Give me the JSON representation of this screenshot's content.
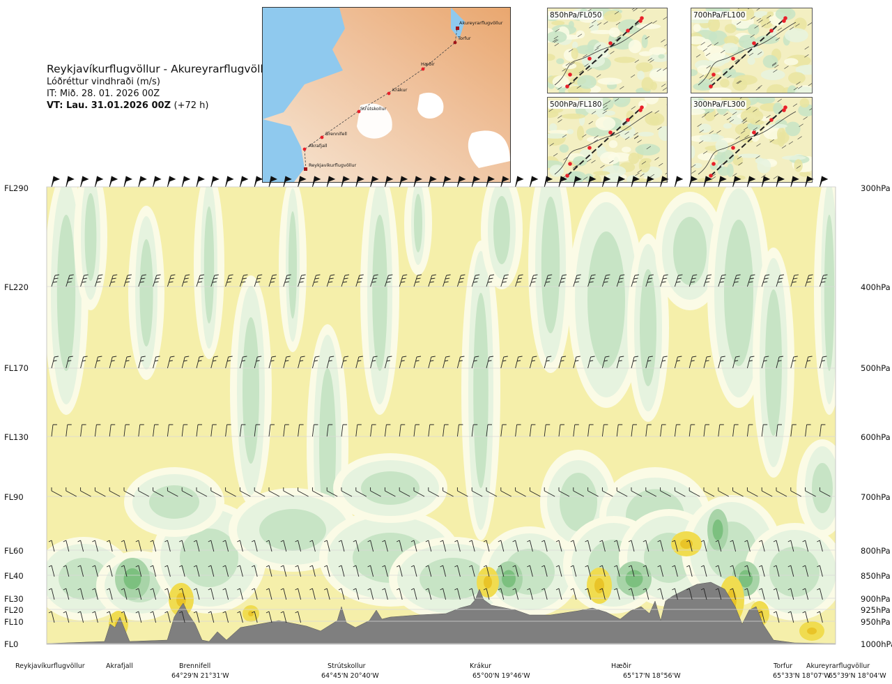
{
  "title": {
    "route": "Reykjavíkurflugvöllur - Akureyrarflugvöllur",
    "variable": "Lóðréttur vindhraði (m/s)",
    "issued": "IT: Mið. 28. 01. 2026 00Z",
    "valid_bold": "VT: Lau. 31.01.2026 00Z",
    "valid_lead": "(+72 h)"
  },
  "map": {
    "points": [
      "Akureyrarflugvöllur",
      "Torfur",
      "Hæðir",
      "Krákur",
      "Strútskollur",
      "Brennifell",
      "Akrafjall",
      "Reykjavíkurflugvöllur"
    ],
    "colors": {
      "water": "#8fc9ee",
      "land_low": "#f6e6d4",
      "land_high": "#e9a76f",
      "ice": "#ffffff",
      "route_point": "#e8202a"
    }
  },
  "panels": [
    {
      "label": "850hPa/FL050"
    },
    {
      "label": "700hPa/FL100"
    },
    {
      "label": "500hPa/FL180"
    },
    {
      "label": "300hPa/FL300"
    }
  ],
  "chart_data": {
    "type": "heatmap",
    "title": "Lóðréttur vindhraði (m/s)",
    "flight_levels": [
      "FL290",
      "FL220",
      "FL170",
      "FL130",
      "FL90",
      "FL60",
      "FL40",
      "FL30",
      "FL20",
      "FL10",
      "FL0"
    ],
    "pressure_levels": [
      "300hPa",
      "400hPa",
      "500hPa",
      "600hPa",
      "700hPa",
      "800hPa",
      "850hPa",
      "900hPa",
      "925hPa",
      "950hPa",
      "1000hPa"
    ],
    "stations": [
      "Reykjavíkurflugvöllur",
      "Akrafjall",
      "Brennifell",
      "Strútskollur",
      "Krákur",
      "Hæðir",
      "Torfur",
      "Akureyrarflugvöllur"
    ],
    "coordinates": [
      "64°29'N 21°31'W",
      "64°45'N 20°40'W",
      "65°00'N 19°46'W",
      "65°17'N 18°56'W",
      "65°33'N 18°07'W",
      "65°39'N 18°04'W"
    ],
    "colors": {
      "sink": "#f5efaa",
      "neutral": "#fbfbe6",
      "weak_up": "#e6f3df",
      "up": "#c7e4c5",
      "strong_up": "#a8d4a8",
      "strongest_up": "#7cc07f",
      "strong_sink": "#f0dc50",
      "strongest_sink": "#e9c428",
      "terrain": "#7f7f7f"
    },
    "grid": true
  }
}
